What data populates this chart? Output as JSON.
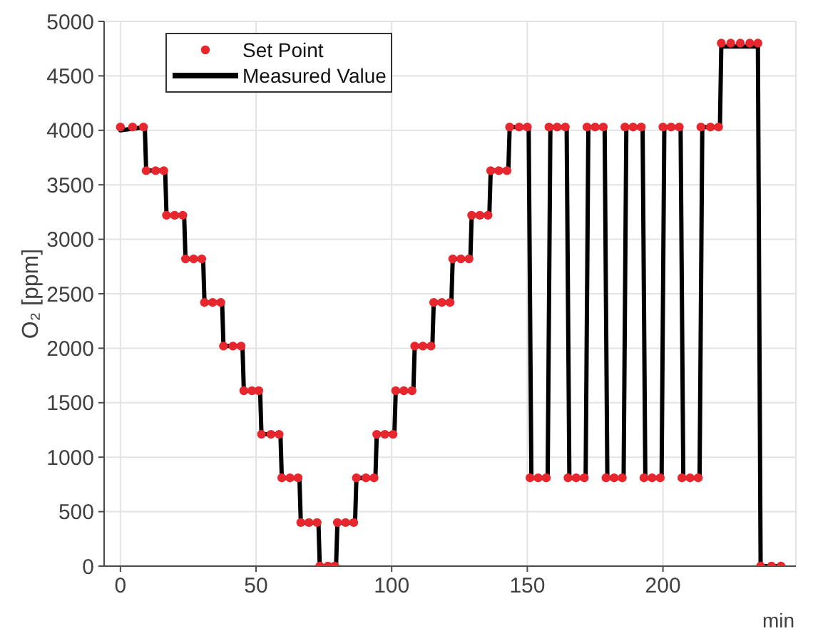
{
  "chart_data": {
    "type": "line",
    "xlabel": "min",
    "ylabel": "O₂ [ppm]",
    "xlim": [
      -6,
      249
    ],
    "xticks": [
      0,
      50,
      100,
      150,
      200
    ],
    "ylim": [
      0,
      5000
    ],
    "yticks": [
      0,
      500,
      1000,
      1500,
      2000,
      2500,
      3000,
      3500,
      4000,
      4500,
      5000
    ],
    "grid": true,
    "legend": "top left",
    "series": [
      {
        "name": "Set Point",
        "type": "scatter",
        "marker": "circle",
        "color": "#e8262d",
        "x": [
          0,
          4.5,
          8.5,
          9.5,
          13,
          16,
          17,
          20,
          23,
          24,
          27,
          30,
          31,
          34,
          37,
          38,
          41.5,
          44.5,
          45.5,
          48.5,
          51,
          52,
          55.5,
          58.5,
          59.5,
          62.5,
          65.5,
          66.5,
          69.5,
          72.5,
          73.5,
          76.5,
          79,
          80,
          83,
          86,
          87,
          90.5,
          93.5,
          94.5,
          97.5,
          100.5,
          101.5,
          104.5,
          107.5,
          108.5,
          111.5,
          114.5,
          115.5,
          118.5,
          121.5,
          122.5,
          125.5,
          128.5,
          129.5,
          132.5,
          135.5,
          136.5,
          139.5,
          142.5,
          143.5,
          147,
          150,
          151,
          154,
          157,
          158,
          161,
          164,
          165,
          168,
          171,
          172,
          175,
          178,
          179,
          182,
          185,
          186,
          189,
          192,
          193,
          196,
          199,
          200,
          203,
          206,
          207,
          210,
          213,
          214,
          217.5,
          220.5,
          221.5,
          225,
          228.5,
          232,
          235,
          236,
          240,
          243.5
        ],
        "values": [
          4030,
          4030,
          4030,
          3630,
          3630,
          3630,
          3220,
          3220,
          3220,
          2820,
          2820,
          2820,
          2420,
          2420,
          2420,
          2020,
          2020,
          2020,
          1610,
          1610,
          1610,
          1210,
          1210,
          1210,
          810,
          810,
          810,
          400,
          400,
          400,
          0,
          0,
          0,
          400,
          400,
          400,
          810,
          810,
          810,
          1210,
          1210,
          1210,
          1610,
          1610,
          1610,
          2020,
          2020,
          2020,
          2420,
          2420,
          2420,
          2820,
          2820,
          2820,
          3220,
          3220,
          3220,
          3630,
          3630,
          3630,
          4030,
          4030,
          4030,
          810,
          810,
          810,
          4030,
          4030,
          4030,
          810,
          810,
          810,
          4030,
          4030,
          4030,
          810,
          810,
          810,
          4030,
          4030,
          4030,
          810,
          810,
          810,
          4030,
          4030,
          4030,
          810,
          810,
          810,
          4030,
          4030,
          4030,
          4800,
          4800,
          4800,
          4800,
          4800,
          0,
          0,
          0
        ]
      },
      {
        "name": "Measured Value",
        "color": "#000000",
        "x": [
          0,
          9,
          9.5,
          16.5,
          17,
          23.5,
          24,
          30.5,
          31,
          37.5,
          38,
          45,
          45.5,
          51.5,
          52,
          59,
          59.5,
          66,
          66.5,
          73,
          73.5,
          79.5,
          80,
          86.5,
          87,
          94,
          94.5,
          101,
          101.5,
          108,
          108.5,
          115,
          115.5,
          122,
          122.5,
          129,
          129.5,
          136,
          136.5,
          143,
          143.5,
          150.5,
          151.5,
          157.5,
          158.5,
          164.5,
          165.5,
          171.5,
          172.5,
          178.5,
          179.5,
          185.5,
          186.5,
          192.5,
          193.5,
          199.5,
          200.5,
          206.5,
          207.5,
          213.5,
          214.5,
          221,
          221.5,
          235,
          236,
          244
        ],
        "values": [
          4000,
          4030,
          3630,
          3630,
          3220,
          3220,
          2820,
          2820,
          2420,
          2420,
          2020,
          2020,
          1610,
          1610,
          1210,
          1210,
          810,
          810,
          400,
          400,
          0,
          0,
          400,
          400,
          810,
          810,
          1210,
          1210,
          1610,
          1610,
          2020,
          2020,
          2420,
          2420,
          2820,
          2820,
          3220,
          3220,
          3630,
          3630,
          4030,
          4030,
          810,
          810,
          4030,
          4030,
          810,
          810,
          4030,
          4030,
          810,
          810,
          4030,
          4030,
          810,
          810,
          4030,
          4030,
          810,
          810,
          4030,
          4030,
          4770,
          4770,
          0,
          0
        ]
      }
    ]
  }
}
